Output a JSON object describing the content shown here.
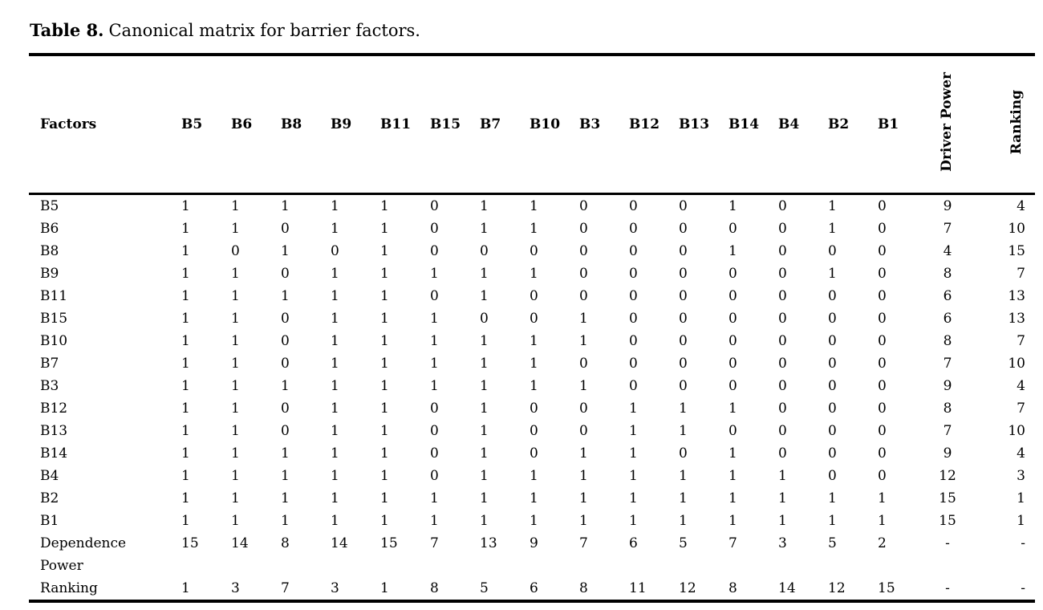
{
  "page": {
    "title_label": "Table 8.",
    "title_text": "Canonical matrix for barrier factors."
  },
  "table": {
    "factors_header": "Factors",
    "column_headers": [
      "B5",
      "B6",
      "B8",
      "B9",
      "B11",
      "B15",
      "B7",
      "B10",
      "B3",
      "B12",
      "B13",
      "B14",
      "B4",
      "B2",
      "B1"
    ],
    "driver_power_header": "Driver Power",
    "ranking_header": "Ranking",
    "rows": [
      {
        "factor": "B5",
        "values": [
          1,
          1,
          1,
          1,
          1,
          0,
          1,
          1,
          0,
          0,
          0,
          1,
          0,
          1,
          0
        ],
        "driver_power": "9",
        "ranking": "4"
      },
      {
        "factor": "B6",
        "values": [
          1,
          1,
          0,
          1,
          1,
          0,
          1,
          1,
          0,
          0,
          0,
          0,
          0,
          1,
          0
        ],
        "driver_power": "7",
        "ranking": "10"
      },
      {
        "factor": "B8",
        "values": [
          1,
          0,
          1,
          0,
          1,
          0,
          0,
          0,
          0,
          0,
          0,
          1,
          0,
          0,
          0
        ],
        "driver_power": "4",
        "ranking": "15"
      },
      {
        "factor": "B9",
        "values": [
          1,
          1,
          0,
          1,
          1,
          1,
          1,
          1,
          0,
          0,
          0,
          0,
          0,
          1,
          0
        ],
        "driver_power": "8",
        "ranking": "7"
      },
      {
        "factor": "B11",
        "values": [
          1,
          1,
          1,
          1,
          1,
          0,
          1,
          0,
          0,
          0,
          0,
          0,
          0,
          0,
          0
        ],
        "driver_power": "6",
        "ranking": "13"
      },
      {
        "factor": "B15",
        "values": [
          1,
          1,
          0,
          1,
          1,
          1,
          0,
          0,
          1,
          0,
          0,
          0,
          0,
          0,
          0
        ],
        "driver_power": "6",
        "ranking": "13"
      },
      {
        "factor": "B10",
        "values": [
          1,
          1,
          0,
          1,
          1,
          1,
          1,
          1,
          1,
          0,
          0,
          0,
          0,
          0,
          0
        ],
        "driver_power": "8",
        "ranking": "7"
      },
      {
        "factor": "B7",
        "values": [
          1,
          1,
          0,
          1,
          1,
          1,
          1,
          1,
          0,
          0,
          0,
          0,
          0,
          0,
          0
        ],
        "driver_power": "7",
        "ranking": "10"
      },
      {
        "factor": "B3",
        "values": [
          1,
          1,
          1,
          1,
          1,
          1,
          1,
          1,
          1,
          0,
          0,
          0,
          0,
          0,
          0
        ],
        "driver_power": "9",
        "ranking": "4"
      },
      {
        "factor": "B12",
        "values": [
          1,
          1,
          0,
          1,
          1,
          0,
          1,
          0,
          0,
          1,
          1,
          1,
          0,
          0,
          0
        ],
        "driver_power": "8",
        "ranking": "7"
      },
      {
        "factor": "B13",
        "values": [
          1,
          1,
          0,
          1,
          1,
          0,
          1,
          0,
          0,
          1,
          1,
          0,
          0,
          0,
          0
        ],
        "driver_power": "7",
        "ranking": "10"
      },
      {
        "factor": "B14",
        "values": [
          1,
          1,
          1,
          1,
          1,
          0,
          1,
          0,
          1,
          1,
          0,
          1,
          0,
          0,
          0
        ],
        "driver_power": "9",
        "ranking": "4"
      },
      {
        "factor": "B4",
        "values": [
          1,
          1,
          1,
          1,
          1,
          0,
          1,
          1,
          1,
          1,
          1,
          1,
          1,
          0,
          0
        ],
        "driver_power": "12",
        "ranking": "3"
      },
      {
        "factor": "B2",
        "values": [
          1,
          1,
          1,
          1,
          1,
          1,
          1,
          1,
          1,
          1,
          1,
          1,
          1,
          1,
          1
        ],
        "driver_power": "15",
        "ranking": "1"
      },
      {
        "factor": "B1",
        "values": [
          1,
          1,
          1,
          1,
          1,
          1,
          1,
          1,
          1,
          1,
          1,
          1,
          1,
          1,
          1
        ],
        "driver_power": "15",
        "ranking": "1"
      }
    ],
    "footer_rows": [
      {
        "label": "Dependence Power",
        "values": [
          15,
          14,
          8,
          14,
          15,
          7,
          13,
          9,
          7,
          6,
          5,
          7,
          3,
          5,
          2
        ],
        "driver_power": "-",
        "ranking": "-"
      },
      {
        "label": "Ranking",
        "values": [
          1,
          3,
          7,
          3,
          1,
          8,
          5,
          6,
          8,
          11,
          12,
          8,
          14,
          12,
          15
        ],
        "driver_power": "-",
        "ranking": "-"
      }
    ]
  },
  "colors": {
    "text": "#000000",
    "rule": "#000000",
    "background": "#ffffff"
  }
}
